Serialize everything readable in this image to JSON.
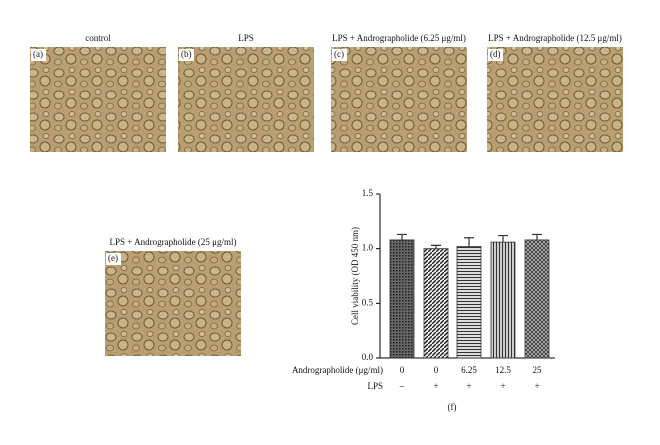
{
  "panels": [
    {
      "label": "(a)",
      "title": "control"
    },
    {
      "label": "(b)",
      "title": "LPS"
    },
    {
      "label": "(c)",
      "title": "LPS + Andrographolide (6.25 μg/ml)"
    },
    {
      "label": "(d)",
      "title": "LPS + Andrographolide (12.5 μg/ml)"
    },
    {
      "label": "(e)",
      "title": "LPS + Andrographolide (25 μg/ml)"
    }
  ],
  "chart_data": {
    "type": "bar",
    "label": "(f)",
    "ylabel": "Cell viability (OD 450 nm)",
    "row_labels": [
      "Andrographolide (μg/ml)",
      "LPS"
    ],
    "categories": [
      "0",
      "0",
      "6.25",
      "12.5",
      "25"
    ],
    "lps": [
      "–",
      "+",
      "+",
      "+",
      "+"
    ],
    "values": [
      1.08,
      1.0,
      1.02,
      1.06,
      1.08
    ],
    "errors": [
      0.05,
      0.03,
      0.08,
      0.06,
      0.05
    ],
    "color": "#333333",
    "ylim": [
      0,
      1.5
    ],
    "yticks": [
      {
        "value": 0,
        "label": "0.0"
      },
      0.5,
      {
        "value": 1,
        "label": "1.0"
      },
      1.5
    ]
  }
}
